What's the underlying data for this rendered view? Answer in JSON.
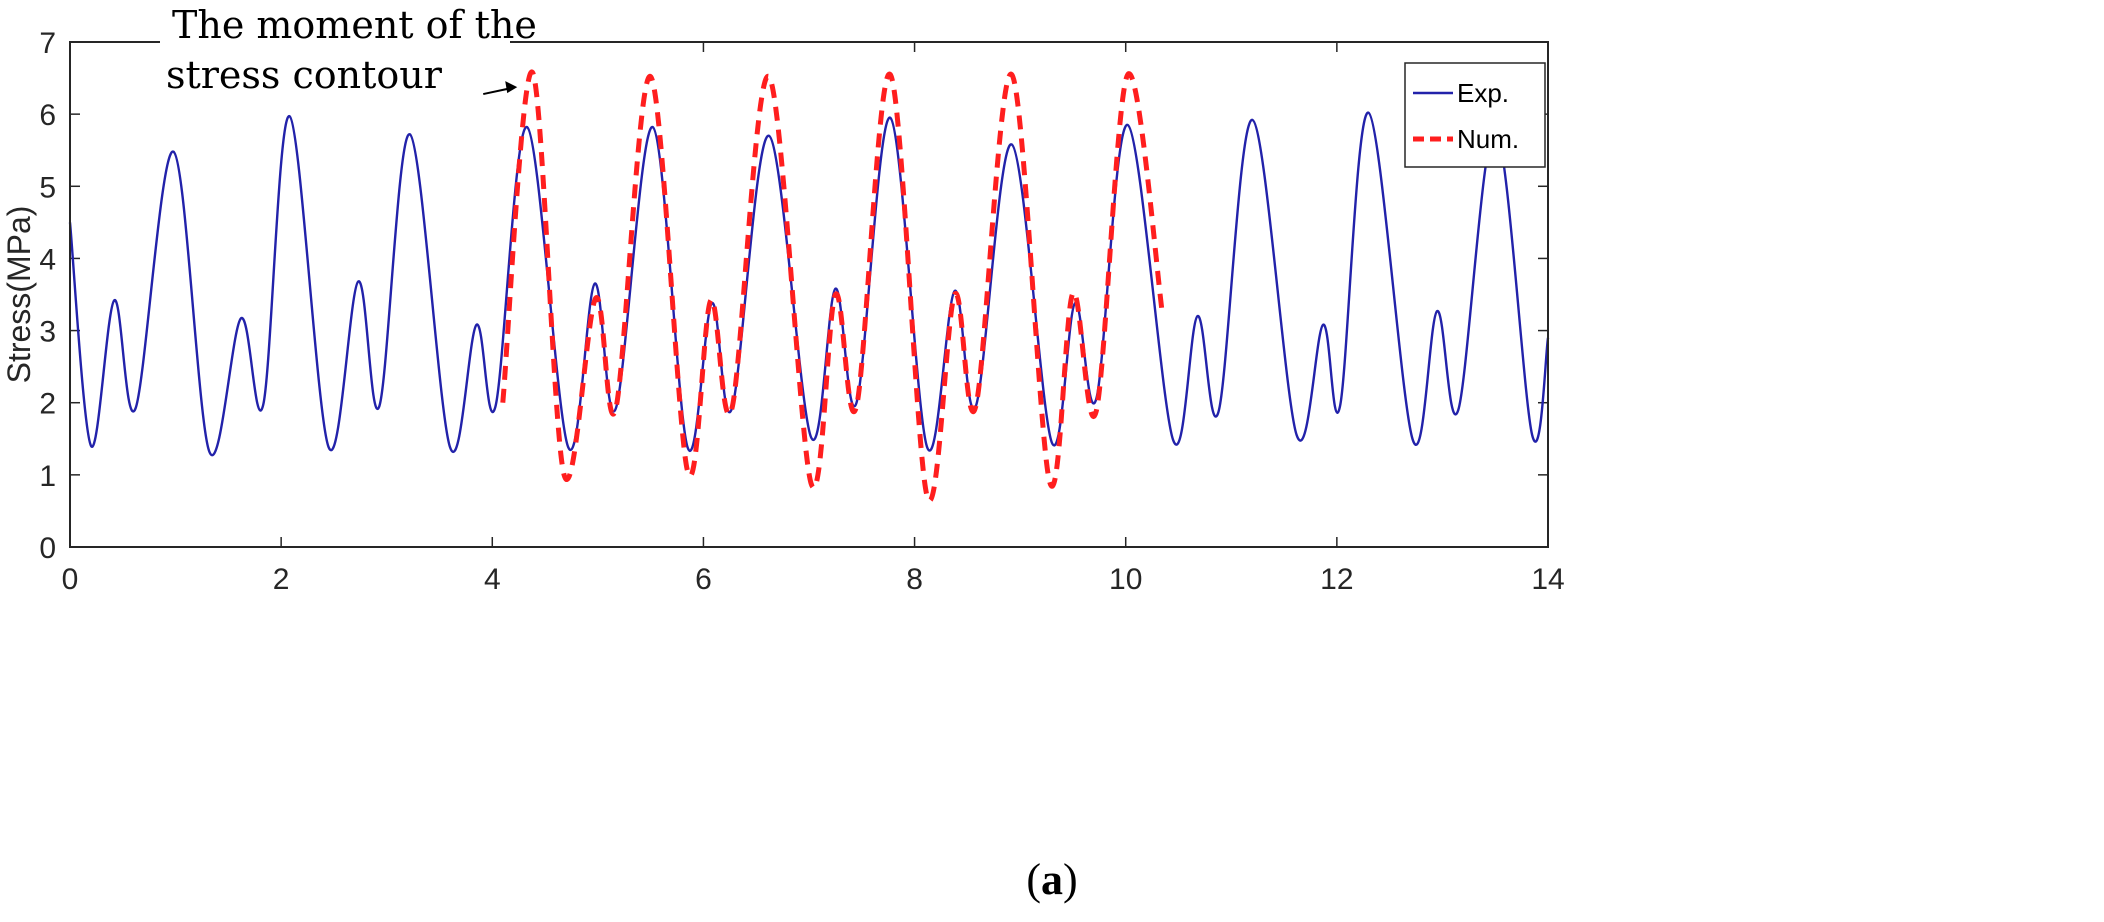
{
  "chart_data": {
    "type": "line",
    "title": "",
    "xlabel": "",
    "ylabel": "Stress(MPa)",
    "xlim": [
      0,
      14
    ],
    "ylim": [
      0,
      7
    ],
    "x_ticks": [
      "0",
      "2",
      "4",
      "6",
      "8",
      "10",
      "12",
      "14"
    ],
    "y_ticks": [
      "0",
      "1",
      "2",
      "3",
      "4",
      "5",
      "6",
      "7"
    ],
    "grid": false,
    "legend_position": "top-right",
    "annotation": {
      "line1": "The moment of the",
      "line2": "stress contour",
      "target": [
        4.35,
        6.5
      ]
    },
    "panel_label": {
      "open": "(",
      "letter": "a",
      "close": ")"
    },
    "series": [
      {
        "name": "Exp.",
        "color": "#2222aa",
        "style": "solid",
        "points": [
          [
            0.0,
            4.5
          ],
          [
            0.2,
            1.4
          ],
          [
            0.42,
            3.42
          ],
          [
            0.62,
            1.92
          ],
          [
            0.98,
            5.48
          ],
          [
            1.32,
            1.32
          ],
          [
            1.62,
            3.17
          ],
          [
            1.83,
            1.97
          ],
          [
            2.08,
            5.97
          ],
          [
            2.45,
            1.38
          ],
          [
            2.73,
            3.68
          ],
          [
            2.93,
            1.95
          ],
          [
            3.22,
            5.72
          ],
          [
            3.6,
            1.38
          ],
          [
            3.85,
            3.08
          ],
          [
            4.03,
            1.95
          ],
          [
            4.33,
            5.82
          ],
          [
            4.72,
            1.38
          ],
          [
            4.97,
            3.65
          ],
          [
            5.17,
            1.92
          ],
          [
            5.52,
            5.82
          ],
          [
            5.85,
            1.38
          ],
          [
            6.08,
            3.38
          ],
          [
            6.27,
            1.92
          ],
          [
            6.62,
            5.7
          ],
          [
            7.02,
            1.52
          ],
          [
            7.25,
            3.58
          ],
          [
            7.45,
            2.0
          ],
          [
            7.77,
            5.95
          ],
          [
            8.12,
            1.38
          ],
          [
            8.38,
            3.55
          ],
          [
            8.58,
            1.95
          ],
          [
            8.92,
            5.58
          ],
          [
            9.3,
            1.45
          ],
          [
            9.52,
            3.38
          ],
          [
            9.72,
            2.05
          ],
          [
            10.02,
            5.85
          ],
          [
            10.45,
            1.48
          ],
          [
            10.68,
            3.2
          ],
          [
            10.88,
            1.88
          ],
          [
            11.2,
            5.92
          ],
          [
            11.62,
            1.55
          ],
          [
            11.87,
            3.08
          ],
          [
            12.03,
            1.95
          ],
          [
            12.3,
            6.02
          ],
          [
            12.72,
            1.48
          ],
          [
            12.95,
            3.27
          ],
          [
            13.15,
            1.9
          ],
          [
            13.5,
            5.8
          ],
          [
            13.85,
            1.55
          ],
          [
            14.0,
            2.9
          ]
        ]
      },
      {
        "name": "Num.",
        "color": "#ff1e1e",
        "style": "dashed",
        "points": [
          [
            4.1,
            2.0
          ],
          [
            4.38,
            6.58
          ],
          [
            4.68,
            1.0
          ],
          [
            4.98,
            3.45
          ],
          [
            5.17,
            1.92
          ],
          [
            5.5,
            6.52
          ],
          [
            5.85,
            1.05
          ],
          [
            6.07,
            3.42
          ],
          [
            6.27,
            1.92
          ],
          [
            6.62,
            6.52
          ],
          [
            7.02,
            0.88
          ],
          [
            7.25,
            3.5
          ],
          [
            7.45,
            1.95
          ],
          [
            7.77,
            6.55
          ],
          [
            8.12,
            0.7
          ],
          [
            8.38,
            3.5
          ],
          [
            8.58,
            1.95
          ],
          [
            8.92,
            6.55
          ],
          [
            9.28,
            0.9
          ],
          [
            9.5,
            3.52
          ],
          [
            9.72,
            1.88
          ],
          [
            10.02,
            6.55
          ],
          [
            10.35,
            3.2
          ]
        ]
      }
    ]
  }
}
